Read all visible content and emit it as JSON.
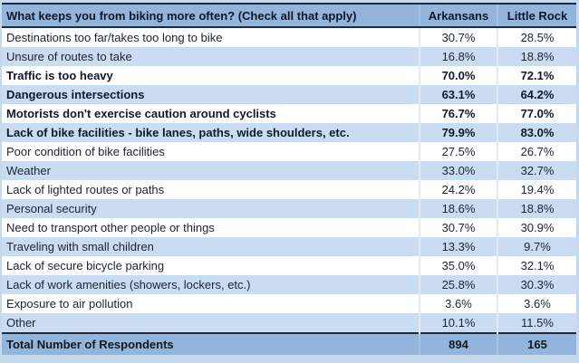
{
  "table": {
    "header": {
      "question": "What keeps you from biking more often? (Check all that apply)",
      "col_arkansans": "Arkansans",
      "col_little_rock": "Little Rock"
    },
    "rows": [
      {
        "label": "Destinations too far/takes too long to bike",
        "arkansans": "30.7%",
        "little_rock": "28.5%",
        "bold": false
      },
      {
        "label": "Unsure of routes to take",
        "arkansans": "16.8%",
        "little_rock": "18.8%",
        "bold": false
      },
      {
        "label": "Traffic is too heavy",
        "arkansans": "70.0%",
        "little_rock": "72.1%",
        "bold": true
      },
      {
        "label": "Dangerous intersections",
        "arkansans": "63.1%",
        "little_rock": "64.2%",
        "bold": true
      },
      {
        "label": "Motorists don't exercise caution around cyclists",
        "arkansans": "76.7%",
        "little_rock": "77.0%",
        "bold": true
      },
      {
        "label": "Lack of bike facilities - bike lanes, paths, wide shoulders, etc.",
        "arkansans": "79.9%",
        "little_rock": "83.0%",
        "bold": true
      },
      {
        "label": "Poor condition of bike facilities",
        "arkansans": "27.5%",
        "little_rock": "26.7%",
        "bold": false
      },
      {
        "label": "Weather",
        "arkansans": "33.0%",
        "little_rock": "32.7%",
        "bold": false
      },
      {
        "label": "Lack of lighted routes or paths",
        "arkansans": "24.2%",
        "little_rock": "19.4%",
        "bold": false
      },
      {
        "label": "Personal security",
        "arkansans": "18.6%",
        "little_rock": "18.8%",
        "bold": false
      },
      {
        "label": "Need to transport other people or things",
        "arkansans": "30.7%",
        "little_rock": "30.9%",
        "bold": false
      },
      {
        "label": "Traveling with small children",
        "arkansans": "13.3%",
        "little_rock": "9.7%",
        "bold": false
      },
      {
        "label": "Lack of secure bicycle parking",
        "arkansans": "35.0%",
        "little_rock": "32.1%",
        "bold": false
      },
      {
        "label": "Lack of work amenities (showers, lockers, etc.)",
        "arkansans": "25.8%",
        "little_rock": "30.3%",
        "bold": false
      },
      {
        "label": "Exposure to air pollution",
        "arkansans": "3.6%",
        "little_rock": "3.6%",
        "bold": false
      },
      {
        "label": "Other",
        "arkansans": "10.1%",
        "little_rock": "11.5%",
        "bold": false
      }
    ],
    "total": {
      "label": "Total Number of Respondents",
      "arkansans": "894",
      "little_rock": "165"
    }
  },
  "colors": {
    "header_bg": "#93B5DC",
    "total_bg": "#93B5DC",
    "alt_row_bg": "#C9DCF2",
    "row_bg": "#FFFFFF",
    "page_bg": "#C6D8EC",
    "dark_border": "#1B2B45",
    "column_divider": "#E4EAF2",
    "text": "#1B2433",
    "header_text": "#0D1826"
  },
  "chart_data": {
    "type": "table",
    "title": "What keeps you from biking more often? (Check all that apply)",
    "columns": [
      "What keeps you from biking more often? (Check all that apply)",
      "Arkansans",
      "Little Rock"
    ],
    "categories": [
      "Destinations too far/takes too long to bike",
      "Unsure of routes to take",
      "Traffic is too heavy",
      "Dangerous intersections",
      "Motorists don't exercise caution around cyclists",
      "Lack of bike facilities - bike lanes, paths, wide shoulders, etc.",
      "Poor condition of bike facilities",
      "Weather",
      "Lack of lighted routes or paths",
      "Personal security",
      "Need to transport other people or things",
      "Traveling with small children",
      "Lack of secure bicycle parking",
      "Lack of work amenities (showers, lockers, etc.)",
      "Exposure to air pollution",
      "Other"
    ],
    "series": [
      {
        "name": "Arkansans",
        "values": [
          30.7,
          16.8,
          70.0,
          63.1,
          76.7,
          79.9,
          27.5,
          33.0,
          24.2,
          18.6,
          30.7,
          13.3,
          35.0,
          25.8,
          3.6,
          10.1
        ],
        "units": "percent"
      },
      {
        "name": "Little Rock",
        "values": [
          28.5,
          18.8,
          72.1,
          64.2,
          77.0,
          83.0,
          26.7,
          32.7,
          19.4,
          18.8,
          30.9,
          9.7,
          32.1,
          30.3,
          3.6,
          11.5
        ],
        "units": "percent"
      }
    ],
    "emphasized_rows": [
      "Traffic is too heavy",
      "Dangerous intersections",
      "Motorists don't exercise caution around cyclists",
      "Lack of bike facilities - bike lanes, paths, wide shoulders, etc."
    ],
    "total_number_of_respondents": {
      "Arkansans": 894,
      "Little Rock": 165
    }
  }
}
